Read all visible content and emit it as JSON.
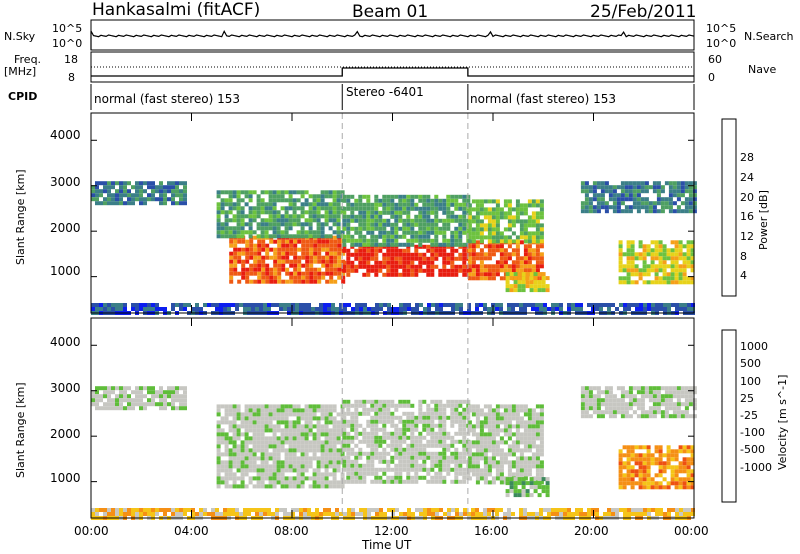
{
  "header": {
    "radar": "Hankasalmi (fitACF)",
    "beam": "Beam 01",
    "date": "25/Feb/2011"
  },
  "strip": {
    "nsky_label": "N.Sky",
    "nsky_ticks": [
      "10^5",
      "10^0"
    ],
    "nsearch_label": "N.Search",
    "nsearch_ticks": [
      "10^5",
      "10^0"
    ],
    "freq_label": "Freq.",
    "freq_unit": "[MHz]",
    "freq_ticks": [
      "18",
      "8"
    ],
    "nave_label": "Nave",
    "nave_ticks": [
      "60",
      "0"
    ],
    "cpid_label": "CPID",
    "cpid_segments": [
      {
        "label": "normal (fast stereo) 153",
        "start_h": 0,
        "end_h": 10
      },
      {
        "label": "Stereo -6401",
        "start_h": 10,
        "end_h": 15
      },
      {
        "label": "normal (fast stereo) 153",
        "start_h": 15,
        "end_h": 24
      }
    ]
  },
  "chart_data": [
    {
      "type": "heatmap",
      "panel": "power",
      "ylabel": "Slant Range [km]",
      "y_ticks": [
        1000,
        2000,
        3000,
        4000
      ],
      "ylim": [
        200,
        4600
      ],
      "xlim": [
        0,
        24
      ],
      "colorbar_label": "Power [dB]",
      "colorbar_ticks": [
        4,
        8,
        12,
        16,
        20,
        24,
        28
      ],
      "colorbar_colors": [
        "#0c1ef0",
        "#2a4fa8",
        "#3b7f88",
        "#4fa062",
        "#6dc23f",
        "#e7d21a",
        "#f5a019",
        "#ef5a14",
        "#e81d10"
      ],
      "regions": [
        {
          "h0": 0.0,
          "h1": 3.8,
          "r0": 2600,
          "r1": 3100,
          "level": 2
        },
        {
          "h0": 5.5,
          "h1": 10.0,
          "r0": 900,
          "r1": 1900,
          "level": 7
        },
        {
          "h0": 5.0,
          "h1": 10.0,
          "r0": 1900,
          "r1": 2900,
          "level": 3
        },
        {
          "h0": 10.0,
          "h1": 15.0,
          "r0": 1000,
          "r1": 1700,
          "level": 8
        },
        {
          "h0": 10.0,
          "h1": 15.0,
          "r0": 1700,
          "r1": 2800,
          "level": 3
        },
        {
          "h0": 15.0,
          "h1": 18.0,
          "r0": 1000,
          "r1": 1800,
          "level": 7
        },
        {
          "h0": 15.0,
          "h1": 18.0,
          "r0": 1800,
          "r1": 2700,
          "level": 4
        },
        {
          "h0": 16.5,
          "h1": 18.2,
          "r0": 700,
          "r1": 1100,
          "level": 5
        },
        {
          "h0": 19.5,
          "h1": 24.0,
          "r0": 2400,
          "r1": 3100,
          "level": 2
        },
        {
          "h0": 21.0,
          "h1": 24.0,
          "r0": 900,
          "r1": 1800,
          "level": 5
        },
        {
          "h0": 0.0,
          "h1": 24.0,
          "r0": 200,
          "r1": 420,
          "level": 1
        }
      ]
    },
    {
      "type": "heatmap",
      "panel": "velocity",
      "ylabel": "Slant Range [km]",
      "y_ticks": [
        1000,
        2000,
        3000,
        4000
      ],
      "ylim": [
        200,
        4600
      ],
      "xlim": [
        0,
        24
      ],
      "xlabel": "Time UT",
      "x_ticks": [
        "00:00",
        "04:00",
        "08:00",
        "12:00",
        "16:00",
        "20:00",
        "00:00"
      ],
      "colorbar_label": "Velocity [m s^-1]",
      "colorbar_ticks": [
        1000,
        500,
        100,
        25,
        -25,
        -100,
        -500,
        -1000
      ],
      "colorbar_colors": [
        "#1f3fc0",
        "#2d6ea0",
        "#3c8a5c",
        "#5fbd3a",
        "#c7c7c2",
        "#c7c7c2",
        "#f5c418",
        "#f58f15",
        "#ee5012",
        "#e81d10"
      ],
      "regions": [
        {
          "h0": 0.0,
          "h1": 3.8,
          "r0": 2600,
          "r1": 3100,
          "level": 4
        },
        {
          "h0": 5.0,
          "h1": 10.0,
          "r0": 900,
          "r1": 2700,
          "level": 4
        },
        {
          "h0": 10.0,
          "h1": 15.0,
          "r0": 1000,
          "r1": 2800,
          "level": 4
        },
        {
          "h0": 15.0,
          "h1": 18.0,
          "r0": 1000,
          "r1": 2700,
          "level": 4
        },
        {
          "h0": 16.5,
          "h1": 18.2,
          "r0": 700,
          "r1": 1100,
          "level": 3
        },
        {
          "h0": 19.5,
          "h1": 24.0,
          "r0": 2400,
          "r1": 3100,
          "level": 4
        },
        {
          "h0": 21.0,
          "h1": 24.0,
          "r0": 900,
          "r1": 1800,
          "level": 7
        },
        {
          "h0": 0.0,
          "h1": 24.0,
          "r0": 200,
          "r1": 420,
          "level": 6
        }
      ]
    }
  ]
}
